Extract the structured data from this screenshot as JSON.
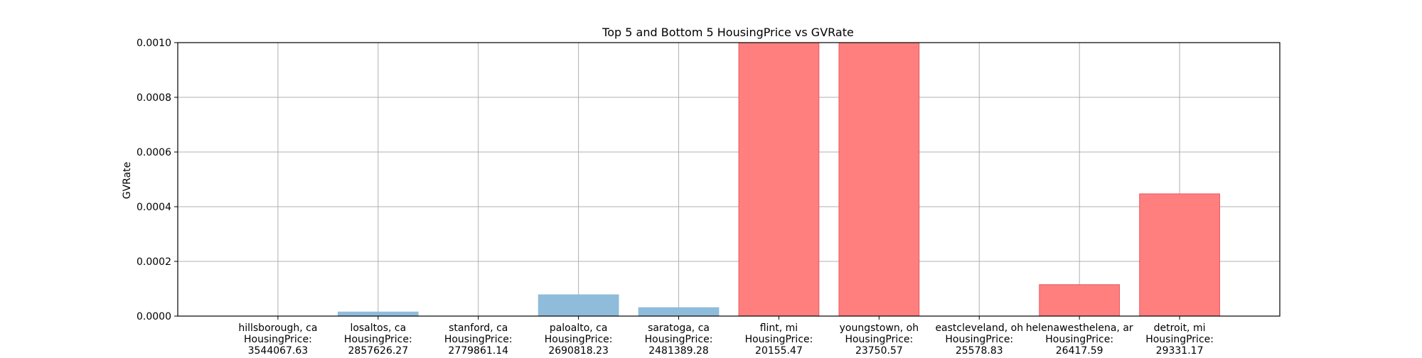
{
  "chart_data": {
    "type": "bar",
    "title": "Top 5 and Bottom 5 HousingPrice vs GVRate",
    "xlabel": "",
    "ylabel": "GVRate",
    "ylim": [
      0,
      0.001
    ],
    "yticks": [
      "0.0000",
      "0.0002",
      "0.0004",
      "0.0006",
      "0.0008",
      "0.0010"
    ],
    "grid": true,
    "categories": [
      [
        "hillsborough, ca",
        "HousingPrice:",
        "3544067.63"
      ],
      [
        "losaltos, ca",
        "HousingPrice:",
        "2857626.27"
      ],
      [
        "stanford, ca",
        "HousingPrice:",
        "2779861.14"
      ],
      [
        "paloalto, ca",
        "HousingPrice:",
        "2690818.23"
      ],
      [
        "saratoga, ca",
        "HousingPrice:",
        "2481389.28"
      ],
      [
        "flint, mi",
        "HousingPrice:",
        "20155.47"
      ],
      [
        "youngstown, oh",
        "HousingPrice:",
        "23750.57"
      ],
      [
        "eastcleveland, oh",
        "HousingPrice:",
        "25578.83"
      ],
      [
        "helenawesthelena, ar",
        "HousingPrice:",
        "26417.59"
      ],
      [
        "detroit, mi",
        "HousingPrice:",
        "29331.17"
      ]
    ],
    "values": [
      0.0,
      1.5e-05,
      0.0,
      7.8e-05,
      3.1e-05,
      0.001,
      0.001,
      0.0,
      0.000115,
      0.000447
    ],
    "bar_colors": [
      "#8fbcdb",
      "#8fbcdb",
      "#8fbcdb",
      "#8fbcdb",
      "#8fbcdb",
      "#ff7f7f",
      "#ff7f7f",
      "#ff7f7f",
      "#ff7f7f",
      "#ff7f7f"
    ],
    "bar_edge_colors": [
      "#8fbcdb",
      "#8fbcdb",
      "#8fbcdb",
      "#8fbcdb",
      "#8fbcdb",
      "#e8585d",
      "#e8585d",
      "#e8585d",
      "#e8585d",
      "#e8585d"
    ]
  }
}
